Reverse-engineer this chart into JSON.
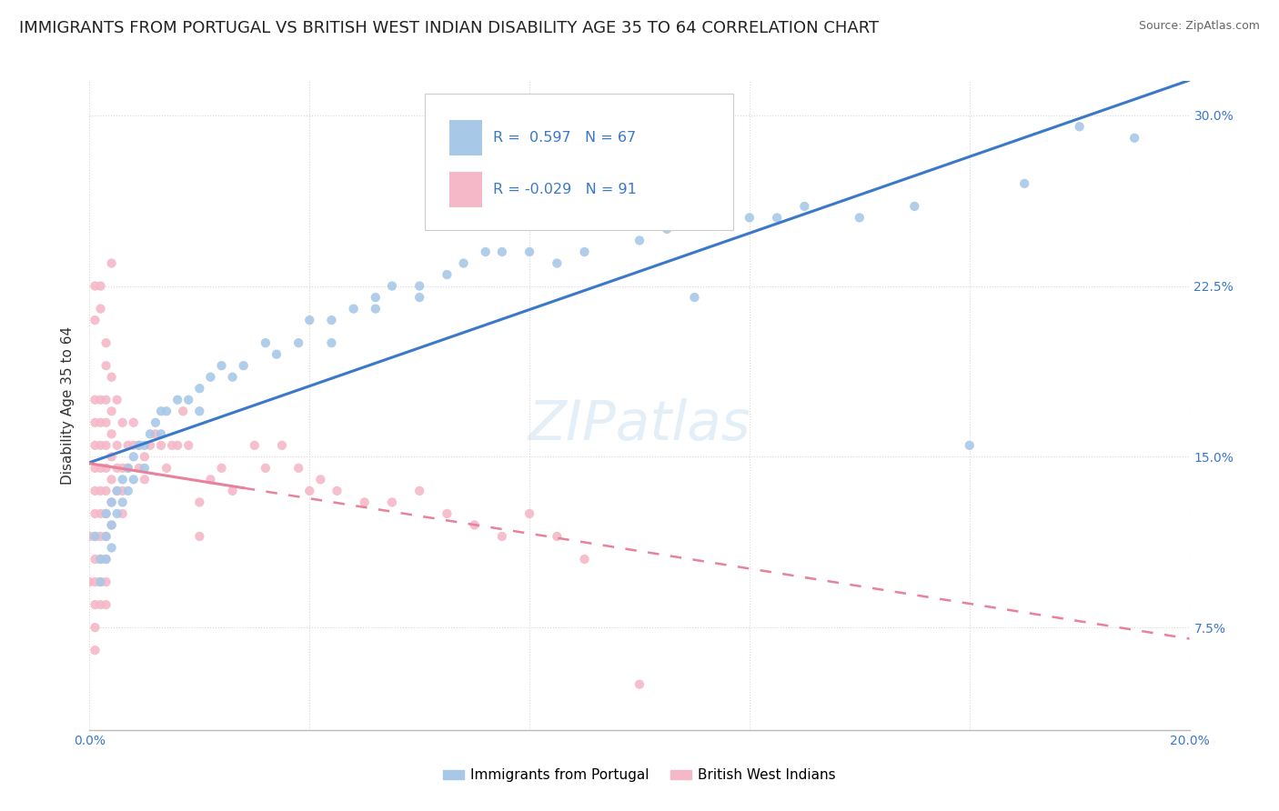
{
  "title": "IMMIGRANTS FROM PORTUGAL VS BRITISH WEST INDIAN DISABILITY AGE 35 TO 64 CORRELATION CHART",
  "source": "Source: ZipAtlas.com",
  "ylabel": "Disability Age 35 to 64",
  "x_min": 0.0,
  "x_max": 0.2,
  "y_min": 0.03,
  "y_max": 0.315,
  "x_ticks": [
    0.0,
    0.04,
    0.08,
    0.12,
    0.16,
    0.2
  ],
  "y_ticks": [
    0.075,
    0.15,
    0.225,
    0.3
  ],
  "y_tick_labels": [
    "7.5%",
    "15.0%",
    "22.5%",
    "30.0%"
  ],
  "blue_R": 0.597,
  "blue_N": 67,
  "pink_R": -0.029,
  "pink_N": 91,
  "blue_color": "#a8c8e8",
  "pink_color": "#f4b8c8",
  "blue_line_color": "#3a78c9",
  "pink_line_color": "#e8829a",
  "blue_scatter": [
    [
      0.001,
      0.115
    ],
    [
      0.002,
      0.105
    ],
    [
      0.002,
      0.095
    ],
    [
      0.003,
      0.125
    ],
    [
      0.003,
      0.115
    ],
    [
      0.003,
      0.105
    ],
    [
      0.004,
      0.13
    ],
    [
      0.004,
      0.12
    ],
    [
      0.004,
      0.11
    ],
    [
      0.005,
      0.135
    ],
    [
      0.005,
      0.125
    ],
    [
      0.006,
      0.14
    ],
    [
      0.006,
      0.13
    ],
    [
      0.007,
      0.145
    ],
    [
      0.007,
      0.135
    ],
    [
      0.008,
      0.15
    ],
    [
      0.008,
      0.14
    ],
    [
      0.009,
      0.155
    ],
    [
      0.01,
      0.155
    ],
    [
      0.01,
      0.145
    ],
    [
      0.011,
      0.16
    ],
    [
      0.012,
      0.165
    ],
    [
      0.013,
      0.17
    ],
    [
      0.013,
      0.16
    ],
    [
      0.014,
      0.17
    ],
    [
      0.016,
      0.175
    ],
    [
      0.018,
      0.175
    ],
    [
      0.02,
      0.18
    ],
    [
      0.02,
      0.17
    ],
    [
      0.022,
      0.185
    ],
    [
      0.024,
      0.19
    ],
    [
      0.026,
      0.185
    ],
    [
      0.028,
      0.19
    ],
    [
      0.032,
      0.2
    ],
    [
      0.034,
      0.195
    ],
    [
      0.038,
      0.2
    ],
    [
      0.04,
      0.21
    ],
    [
      0.044,
      0.21
    ],
    [
      0.044,
      0.2
    ],
    [
      0.048,
      0.215
    ],
    [
      0.052,
      0.22
    ],
    [
      0.052,
      0.215
    ],
    [
      0.055,
      0.225
    ],
    [
      0.06,
      0.225
    ],
    [
      0.06,
      0.22
    ],
    [
      0.065,
      0.23
    ],
    [
      0.068,
      0.235
    ],
    [
      0.072,
      0.24
    ],
    [
      0.075,
      0.24
    ],
    [
      0.08,
      0.24
    ],
    [
      0.085,
      0.235
    ],
    [
      0.09,
      0.24
    ],
    [
      0.1,
      0.245
    ],
    [
      0.105,
      0.25
    ],
    [
      0.11,
      0.22
    ],
    [
      0.12,
      0.255
    ],
    [
      0.125,
      0.255
    ],
    [
      0.13,
      0.26
    ],
    [
      0.14,
      0.255
    ],
    [
      0.15,
      0.26
    ],
    [
      0.16,
      0.155
    ],
    [
      0.17,
      0.27
    ],
    [
      0.18,
      0.295
    ],
    [
      0.19,
      0.29
    ]
  ],
  "pink_scatter": [
    [
      0.0,
      0.115
    ],
    [
      0.0,
      0.095
    ],
    [
      0.001,
      0.225
    ],
    [
      0.001,
      0.21
    ],
    [
      0.001,
      0.175
    ],
    [
      0.001,
      0.165
    ],
    [
      0.001,
      0.155
    ],
    [
      0.001,
      0.145
    ],
    [
      0.001,
      0.135
    ],
    [
      0.001,
      0.125
    ],
    [
      0.001,
      0.115
    ],
    [
      0.001,
      0.105
    ],
    [
      0.001,
      0.095
    ],
    [
      0.001,
      0.085
    ],
    [
      0.001,
      0.075
    ],
    [
      0.001,
      0.065
    ],
    [
      0.002,
      0.225
    ],
    [
      0.002,
      0.215
    ],
    [
      0.002,
      0.175
    ],
    [
      0.002,
      0.165
    ],
    [
      0.002,
      0.155
    ],
    [
      0.002,
      0.145
    ],
    [
      0.002,
      0.135
    ],
    [
      0.002,
      0.125
    ],
    [
      0.002,
      0.115
    ],
    [
      0.002,
      0.105
    ],
    [
      0.002,
      0.095
    ],
    [
      0.002,
      0.085
    ],
    [
      0.003,
      0.2
    ],
    [
      0.003,
      0.19
    ],
    [
      0.003,
      0.175
    ],
    [
      0.003,
      0.165
    ],
    [
      0.003,
      0.155
    ],
    [
      0.003,
      0.145
    ],
    [
      0.003,
      0.135
    ],
    [
      0.003,
      0.125
    ],
    [
      0.003,
      0.115
    ],
    [
      0.003,
      0.105
    ],
    [
      0.003,
      0.095
    ],
    [
      0.003,
      0.085
    ],
    [
      0.004,
      0.235
    ],
    [
      0.004,
      0.185
    ],
    [
      0.004,
      0.17
    ],
    [
      0.004,
      0.16
    ],
    [
      0.004,
      0.15
    ],
    [
      0.004,
      0.14
    ],
    [
      0.004,
      0.13
    ],
    [
      0.004,
      0.12
    ],
    [
      0.005,
      0.175
    ],
    [
      0.005,
      0.155
    ],
    [
      0.005,
      0.145
    ],
    [
      0.005,
      0.135
    ],
    [
      0.006,
      0.165
    ],
    [
      0.006,
      0.145
    ],
    [
      0.006,
      0.135
    ],
    [
      0.006,
      0.125
    ],
    [
      0.007,
      0.155
    ],
    [
      0.007,
      0.145
    ],
    [
      0.008,
      0.165
    ],
    [
      0.008,
      0.155
    ],
    [
      0.009,
      0.155
    ],
    [
      0.009,
      0.145
    ],
    [
      0.01,
      0.15
    ],
    [
      0.01,
      0.14
    ],
    [
      0.011,
      0.155
    ],
    [
      0.012,
      0.16
    ],
    [
      0.013,
      0.155
    ],
    [
      0.014,
      0.145
    ],
    [
      0.015,
      0.155
    ],
    [
      0.016,
      0.155
    ],
    [
      0.017,
      0.17
    ],
    [
      0.018,
      0.155
    ],
    [
      0.02,
      0.13
    ],
    [
      0.02,
      0.115
    ],
    [
      0.022,
      0.14
    ],
    [
      0.024,
      0.145
    ],
    [
      0.026,
      0.135
    ],
    [
      0.03,
      0.155
    ],
    [
      0.032,
      0.145
    ],
    [
      0.035,
      0.155
    ],
    [
      0.038,
      0.145
    ],
    [
      0.04,
      0.135
    ],
    [
      0.042,
      0.14
    ],
    [
      0.045,
      0.135
    ],
    [
      0.05,
      0.13
    ],
    [
      0.055,
      0.13
    ],
    [
      0.06,
      0.135
    ],
    [
      0.065,
      0.125
    ],
    [
      0.07,
      0.12
    ],
    [
      0.075,
      0.115
    ],
    [
      0.08,
      0.125
    ],
    [
      0.085,
      0.115
    ],
    [
      0.09,
      0.105
    ],
    [
      0.1,
      0.05
    ]
  ],
  "watermark": "ZIPatlas",
  "background_color": "#ffffff",
  "grid_color": "#d8d8d8",
  "title_fontsize": 13,
  "label_fontsize": 11
}
